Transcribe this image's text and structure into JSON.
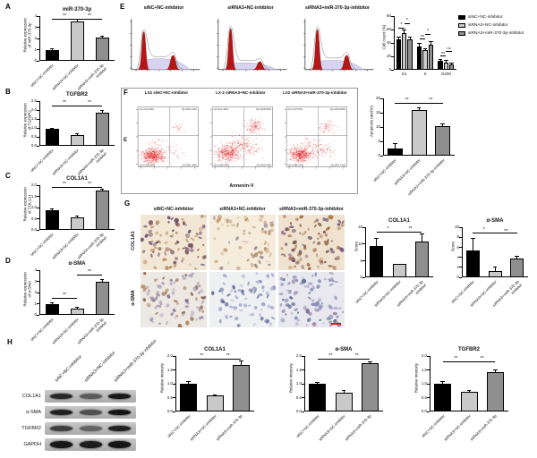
{
  "labels": {
    "A": "A",
    "B": "B",
    "C": "C",
    "D": "D",
    "E": "E",
    "F": "F",
    "G": "G",
    "H": "H"
  },
  "groups": [
    "siNC+NC-inhibitor",
    "siRNA3+NC-inhibitor",
    "siRNA3+miR-370-3p\ninhibitor"
  ],
  "colors": {
    "bars": [
      "#000000",
      "#c9c9c9",
      "#8f8f8f"
    ],
    "scatter_dot": "#e02828",
    "hist_peak": "#b51616",
    "hist_s": "#d7d3f0",
    "scale_bar": "#cc2222"
  },
  "legend": {
    "items": [
      {
        "label": "siNC+NC-inhibitor",
        "color": "#000000"
      },
      {
        "label": "siRNA3+NC-inhibitor",
        "color": "#c9c9c9"
      },
      {
        "label": "siRNA3+miR-370-3p-inhibitor",
        "color": "#8f8f8f"
      }
    ]
  },
  "panelE": {
    "titles": [
      "siNC+NC-inhibitor",
      "siRNA3+NC-inhibitor",
      "siRNA3+miR-370-3p-inhibitor"
    ],
    "hist": [
      {
        "g1": 0.85,
        "s": 0.35,
        "g2": 0.32
      },
      {
        "g1": 0.92,
        "s": 0.22,
        "g2": 0.18
      },
      {
        "g1": 0.9,
        "s": 0.3,
        "g2": 0.32
      }
    ]
  },
  "panelF": {
    "titles": [
      "LX2 siNC+NC-inhibitor",
      "LX-2 siRNA3+NC-inhibitor",
      "LX2 siRNA3+miR-370-3p-inhibitor"
    ],
    "xlabel": "Annexin-V",
    "ylabel": "PI",
    "quadrants": [
      {
        "ul": "Q1-UL(0.49%)",
        "ur": "Q1-UR(1.16%)",
        "ll": "Q1-LL(96.91%)",
        "lr": "Q1-LR(1.45%)"
      },
      {
        "ul": "Q1-UL(1.40%)",
        "ur": "Q1-UR(8.29%)",
        "ll": "Q1-LL(84.52%)",
        "lr": "Q1-LR(5.79%)"
      },
      {
        "ul": "Q1-UL(0.57%)",
        "ur": "Q1-UR(3.99%)",
        "ll": "Q1-LL(88.31%)",
        "lr": "Q1-LR(7.13%)"
      }
    ]
  },
  "panelG": {
    "col_titles": [
      "siNC+NC-inhibitor",
      "siRNA3+NC-inhibitor",
      "siRNA3+miR-370-3p-inhibitor"
    ],
    "row_labels": [
      "COL1A1",
      "α-SMA"
    ]
  },
  "panelH": {
    "lane_labels": [
      "siNC+NC-inhibitor",
      "siRNA3+NC-inhibitor",
      "siRNA3+miR-370-3p inhibitor"
    ],
    "row_labels": [
      "COL1A1",
      "α-SMA",
      "TGFBR2",
      "GAPDH"
    ],
    "band_intensity": [
      [
        0.85,
        0.55,
        0.95
      ],
      [
        0.9,
        0.62,
        0.97
      ],
      [
        0.72,
        0.5,
        0.9
      ],
      [
        0.95,
        0.92,
        0.96
      ]
    ]
  },
  "chart_data": [
    {
      "id": "A",
      "type": "bar",
      "title": "miR-370-3p",
      "ylabel": "Relative expression\nof miR-370-3p",
      "ymax": 4,
      "yticks": [
        0,
        1,
        2,
        3,
        4
      ],
      "ytick_labels": [
        "0",
        "1",
        "2",
        "3",
        "4"
      ],
      "categories": [
        "siNC+NC-inhibitor",
        "siRNA3+NC-inhibitor",
        "siRNA3+miR-370-3p\ninhibitor"
      ],
      "values": [
        1.0,
        3.5,
        2.05
      ],
      "errors": [
        0.06,
        0.2,
        0.15
      ],
      "sig": [
        [
          "**",
          0,
          1,
          3.8
        ],
        [
          "**",
          1,
          2,
          3.8
        ]
      ]
    },
    {
      "id": "B",
      "type": "bar",
      "title": "TGFBR2",
      "ylabel": "Relative expression\nof TGFBR2",
      "ymax": 2.5,
      "yticks": [
        0,
        0.5,
        1,
        1.5,
        2,
        2.5
      ],
      "ytick_labels": [
        "0.0",
        "0.5",
        "1.0",
        "1.5",
        "2.0",
        "2.5"
      ],
      "categories": [
        "siNC+NC-inhibitor",
        "siRNA3+NC-inhibitor",
        "siRNA3+miR-370-3p\ninhibitor"
      ],
      "values": [
        0.95,
        0.62,
        1.85
      ],
      "errors": [
        0.04,
        0.05,
        0.12
      ],
      "sig": [
        [
          "**",
          0,
          1,
          2.25
        ],
        [
          "**",
          1,
          2,
          2.25
        ]
      ]
    },
    {
      "id": "C",
      "type": "bar",
      "title": "COL1A1",
      "ylabel": "Relative expression\nof COL1A1",
      "ymax": 2,
      "yticks": [
        0,
        0.5,
        1,
        1.5,
        2
      ],
      "ytick_labels": [
        "0.0",
        "0.5",
        "1.0",
        "1.5",
        "2.0"
      ],
      "categories": [
        "siNC+NC-inhibitor",
        "siRNA3+NC-inhibitor",
        "siRNA3+miR-370-3p\ninhibitor"
      ],
      "values": [
        0.9,
        0.57,
        1.78
      ],
      "errors": [
        0.05,
        0.04,
        0.04
      ],
      "sig": [
        [
          "**",
          0,
          1,
          1.93
        ],
        [
          "**",
          1,
          2,
          1.93
        ]
      ]
    },
    {
      "id": "D",
      "type": "bar",
      "title": "α-SMA",
      "ylabel": "Relative expression\nof α-SMA",
      "ymax": 4,
      "yticks": [
        0,
        1,
        2,
        3,
        4
      ],
      "ytick_labels": [
        "0",
        "1",
        "2",
        "3",
        "4"
      ],
      "categories": [
        "siNC+NC-inhibitor",
        "siRNA3+NC-inhibitor",
        "siRNA3+miR-370-3p\ninhibitor"
      ],
      "values": [
        1.0,
        0.6,
        3.0
      ],
      "errors": [
        0.08,
        0.06,
        0.2
      ],
      "sig": [
        [
          "**",
          0,
          1,
          1.5
        ],
        [
          "**",
          1,
          2,
          3.6
        ]
      ]
    },
    {
      "id": "E_counts",
      "type": "bar",
      "title": "",
      "ylabel": "Cell count (%)",
      "ymax": 80,
      "yticks": [
        0,
        20,
        40,
        60,
        80
      ],
      "ytick_labels": [
        "0",
        "20",
        "40",
        "60",
        "80"
      ],
      "categories": [
        "G1",
        "S",
        "G2/M"
      ],
      "series": [
        {
          "name": "siNC+NC-inhibitor",
          "values": [
            46,
            35,
            13
          ],
          "errors": [
            3,
            4,
            2
          ]
        },
        {
          "name": "siRNA3+NC-inhibitor",
          "values": [
            55,
            29,
            11
          ],
          "errors": [
            4,
            3,
            3
          ]
        },
        {
          "name": "siRNA3+miR-370-3p-inhibitor",
          "values": [
            45,
            38,
            8
          ],
          "errors": [
            4,
            4,
            2
          ]
        }
      ],
      "sig": [
        [
          "*",
          0,
          0,
          1,
          63
        ],
        [
          "*",
          0,
          1,
          2,
          70
        ],
        [
          "ns",
          1,
          0,
          1,
          47
        ],
        [
          "*",
          1,
          1,
          2,
          54
        ],
        [
          "ns",
          2,
          0,
          1,
          21
        ],
        [
          "ns",
          2,
          1,
          2,
          28
        ]
      ]
    },
    {
      "id": "F_apoptosis",
      "type": "bar",
      "title": "",
      "ylabel": "Apoptosis rate(%)",
      "ymax": 20,
      "yticks": [
        0,
        5,
        10,
        15,
        20
      ],
      "ytick_labels": [
        "0",
        "5",
        "10",
        "15",
        "20"
      ],
      "categories": [
        "siNC+NC-inhibitor",
        "siRNA3+NC-inhibitor",
        "siRNA3+miR-370-3p-inhibitor"
      ],
      "values": [
        2.5,
        15.8,
        10.2
      ],
      "errors": [
        1.6,
        0.9,
        0.8
      ],
      "sig": [
        [
          "**",
          0,
          1,
          18.3
        ],
        [
          "**",
          1,
          2,
          18.3
        ]
      ]
    },
    {
      "id": "G_col1a1",
      "type": "bar",
      "title": "COL1A1",
      "ylabel": "Score",
      "ymax": 15,
      "yticks": [
        0,
        5,
        10,
        15
      ],
      "ytick_labels": [
        "0",
        "5",
        "10",
        "15"
      ],
      "categories": [
        "siNC+NC-inhibitor",
        "siRNA3+NC-inhibitor",
        "siRNA3+miR-370-3p\ninhibitor"
      ],
      "values": [
        9.3,
        4.0,
        10.7
      ],
      "errors": [
        2.3,
        0,
        2.2
      ],
      "sig": [
        [
          "*",
          0,
          1,
          13.6
        ],
        [
          "**",
          1,
          2,
          13.6
        ]
      ]
    },
    {
      "id": "G_asma",
      "type": "bar",
      "title": "α-SMA",
      "ylabel": "Score",
      "ymax": 10,
      "yticks": [
        0,
        2,
        4,
        6,
        8,
        10
      ],
      "ytick_labels": [
        "0",
        "2",
        "4",
        "6",
        "8",
        "10"
      ],
      "categories": [
        "siNC+NC-inhibitor",
        "siRNA3+NC-inhibitor",
        "siRNA3+miR-370-3p\ninhibitor"
      ],
      "values": [
        5.3,
        1.3,
        3.7
      ],
      "errors": [
        2.4,
        0.7,
        0.5
      ],
      "sig": [
        [
          "*",
          0,
          1,
          8.9
        ],
        [
          "ns",
          1,
          2,
          8.9
        ]
      ]
    },
    {
      "id": "H_col1a1",
      "type": "bar",
      "title": "COL1A1",
      "ylabel": "Relative intensity",
      "ymax": 2,
      "yticks": [
        0,
        0.5,
        1,
        1.5,
        2
      ],
      "ytick_labels": [
        "0.0",
        "0.5",
        "1.0",
        "1.5",
        "2.0"
      ],
      "categories": [
        "siNC+NC-inhibitor",
        "siRNA3+NC-inhibitor",
        "siRNA3+miR-370-3p"
      ],
      "values": [
        1.0,
        0.58,
        1.68
      ],
      "errors": [
        0.07,
        0.03,
        0.15
      ],
      "sig": [
        [
          "**",
          0,
          1,
          1.9
        ],
        [
          "**",
          1,
          2,
          1.9
        ]
      ]
    },
    {
      "id": "H_asma",
      "type": "bar",
      "title": "α-SMA",
      "ylabel": "Relative intensity",
      "ymax": 2,
      "yticks": [
        0,
        0.5,
        1,
        1.5,
        2
      ],
      "ytick_labels": [
        "0.0",
        "0.5",
        "1.0",
        "1.5",
        "2.0"
      ],
      "categories": [
        "siNC+NC-inhibitor",
        "siRNA3+NC-inhibitor",
        "siRNA3+miR-370-3p"
      ],
      "values": [
        1.0,
        0.68,
        1.75
      ],
      "errors": [
        0.04,
        0.08,
        0.05
      ],
      "sig": [
        [
          "**",
          0,
          1,
          1.9
        ],
        [
          "**",
          1,
          2,
          1.9
        ]
      ]
    },
    {
      "id": "H_tgfbr2",
      "type": "bar",
      "title": "TGFBR2",
      "ylabel": "Relative intensity",
      "ymax": 2,
      "yticks": [
        0,
        0.5,
        1,
        1.5,
        2
      ],
      "ytick_labels": [
        "0.0",
        "0.5",
        "1.0",
        "1.5",
        "2.0"
      ],
      "categories": [
        "siNC+NC-inhibitor",
        "siRNA3+NC-inhibitor",
        "siRNA3+miR-370-3p"
      ],
      "values": [
        1.0,
        0.7,
        1.42
      ],
      "errors": [
        0.08,
        0.05,
        0.07
      ],
      "sig": [
        [
          "**",
          0,
          1,
          1.8
        ],
        [
          "**",
          1,
          2,
          1.8
        ]
      ]
    }
  ]
}
